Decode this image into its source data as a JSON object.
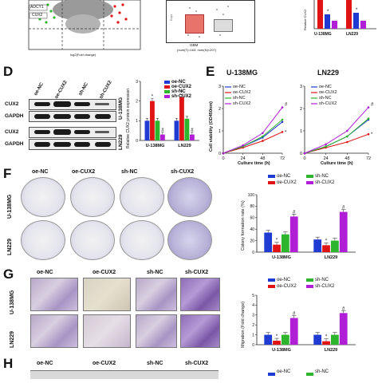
{
  "panels": {
    "D": "D",
    "E": "E",
    "F": "F",
    "G": "G",
    "H": "H"
  },
  "colors": {
    "oe_nc": "#1f3bd1",
    "oe_cux2": "#e01414",
    "sh_nc": "#2db52d",
    "sh_cux2": "#b01fd6"
  },
  "top": {
    "volcano_label1": "ADCY1",
    "volcano_label2": "CUX2",
    "volcano_xlabel": "log2(Fold change)",
    "box_label": "GBM",
    "box_sublabel": "(num(T)=163; num(N)=207)",
    "bar_ylabel": "Relative CUX2",
    "bar_groups": [
      "U-138MG",
      "LN229"
    ],
    "expr_ylabel": "Expr"
  },
  "panelD": {
    "lanes": [
      "oe-NC",
      "oe-CUX2",
      "sh-NC",
      "sh-CUX2"
    ],
    "rows": [
      "CUX2",
      "GAPDH",
      "CUX2",
      "GAPDH"
    ],
    "cell_lines": [
      "U-138MG",
      "LN229"
    ],
    "chart_ylabel": "Relative CUX2 protein expression",
    "legend": [
      "oe-NC",
      "oe-CUX2",
      "sh-NC",
      "sh-CUX2"
    ]
  },
  "panelE": {
    "title1": "U-138MG",
    "title2": "LN229",
    "ylabel": "Cell viability (OD450nm)",
    "xlabel": "Culture time (h)",
    "legend": [
      "oe-NC",
      "oe-CUX2",
      "sh-NC",
      "sh-CUX2"
    ]
  },
  "panelF": {
    "cols": [
      "oe-NC",
      "oe-CUX2",
      "sh-NC",
      "sh-CUX2"
    ],
    "rows": [
      "U-138MG",
      "LN229"
    ],
    "legend": [
      "oe-NC",
      "oe-CUX2",
      "sh-NC",
      "sh-CUX2"
    ],
    "ylabel": "Colony formation rate (%)"
  },
  "panelG": {
    "cols": [
      "oe-NC",
      "oe-CUX2",
      "sh-NC",
      "sh-CUX2"
    ],
    "rows": [
      "U-138MG",
      "LN229"
    ],
    "legend": [
      "oe-NC",
      "oe-CUX2",
      "sh-NC",
      "sh-CUX2"
    ],
    "ylabel": "Migration (Fold change)"
  },
  "panelH": {
    "cols": [
      "oe-NC",
      "oe-CUX2",
      "sh-NC",
      "sh-CUX2"
    ],
    "legend": [
      "oe-NC",
      "sh-NC"
    ]
  },
  "chart_data": [
    {
      "id": "D",
      "type": "bar",
      "categories": [
        "U-138MG",
        "LN229"
      ],
      "series": [
        {
          "name": "oe-NC",
          "values": [
            1.0,
            1.0
          ]
        },
        {
          "name": "oe-CUX2",
          "values": [
            2.0,
            2.2
          ]
        },
        {
          "name": "sh-NC",
          "values": [
            1.0,
            1.1
          ]
        },
        {
          "name": "sh-CUX2",
          "values": [
            0.3,
            0.3
          ]
        }
      ],
      "ylim": [
        0,
        3
      ],
      "yticks": [
        0,
        1,
        2,
        3
      ],
      "markers": [
        "*",
        "#"
      ]
    },
    {
      "id": "E1",
      "type": "line",
      "title": "U-138MG",
      "x": [
        0,
        24,
        48,
        72
      ],
      "series": [
        {
          "name": "oe-NC",
          "values": [
            0.0,
            0.3,
            0.7,
            1.4
          ]
        },
        {
          "name": "oe-CUX2",
          "values": [
            0.0,
            0.25,
            0.55,
            0.95
          ]
        },
        {
          "name": "sh-NC",
          "values": [
            0.0,
            0.3,
            0.75,
            1.5
          ]
        },
        {
          "name": "sh-CUX2",
          "values": [
            0.0,
            0.35,
            0.9,
            2.05
          ]
        }
      ],
      "xlabel": "Culture time (h)",
      "ylabel": "Cell viability (OD450nm)",
      "ylim": [
        0,
        3
      ],
      "yticks": [
        0,
        1,
        2,
        3
      ],
      "markers": [
        "#",
        "*"
      ]
    },
    {
      "id": "E2",
      "type": "line",
      "title": "LN229",
      "x": [
        0,
        24,
        48,
        72
      ],
      "series": [
        {
          "name": "oe-NC",
          "values": [
            0.0,
            0.3,
            0.75,
            1.5
          ]
        },
        {
          "name": "oe-CUX2",
          "values": [
            0.0,
            0.25,
            0.5,
            0.85
          ]
        },
        {
          "name": "sh-NC",
          "values": [
            0.0,
            0.3,
            0.75,
            1.55
          ]
        },
        {
          "name": "sh-CUX2",
          "values": [
            0.0,
            0.4,
            1.0,
            2.05
          ]
        }
      ],
      "xlabel": "Culture time (h)",
      "ylim": [
        0,
        3
      ],
      "yticks": [
        0,
        1,
        2,
        3
      ],
      "markers": [
        "#",
        "*"
      ]
    },
    {
      "id": "F",
      "type": "bar",
      "categories": [
        "U-138MG",
        "LN229"
      ],
      "series": [
        {
          "name": "oe-NC",
          "values": [
            34,
            22
          ]
        },
        {
          "name": "oe-CUX2",
          "values": [
            13,
            12
          ]
        },
        {
          "name": "sh-NC",
          "values": [
            31,
            20
          ]
        },
        {
          "name": "sh-CUX2",
          "values": [
            62,
            70
          ]
        }
      ],
      "ylabel": "Colony formation rate (%)",
      "ylim": [
        0,
        100
      ],
      "yticks": [
        0,
        20,
        40,
        60,
        80,
        100
      ],
      "markers": [
        "*",
        "#"
      ]
    },
    {
      "id": "G",
      "type": "bar",
      "categories": [
        "U-138MG",
        "LN229"
      ],
      "series": [
        {
          "name": "oe-NC",
          "values": [
            1.0,
            1.0
          ]
        },
        {
          "name": "oe-CUX2",
          "values": [
            0.4,
            0.35
          ]
        },
        {
          "name": "sh-NC",
          "values": [
            1.0,
            1.0
          ]
        },
        {
          "name": "sh-CUX2",
          "values": [
            2.7,
            3.2
          ]
        }
      ],
      "ylabel": "Migration (Fold change)",
      "ylim": [
        0,
        5
      ],
      "yticks": [
        0,
        1,
        2,
        3,
        4,
        5
      ],
      "markers": [
        "*",
        "#"
      ]
    }
  ]
}
